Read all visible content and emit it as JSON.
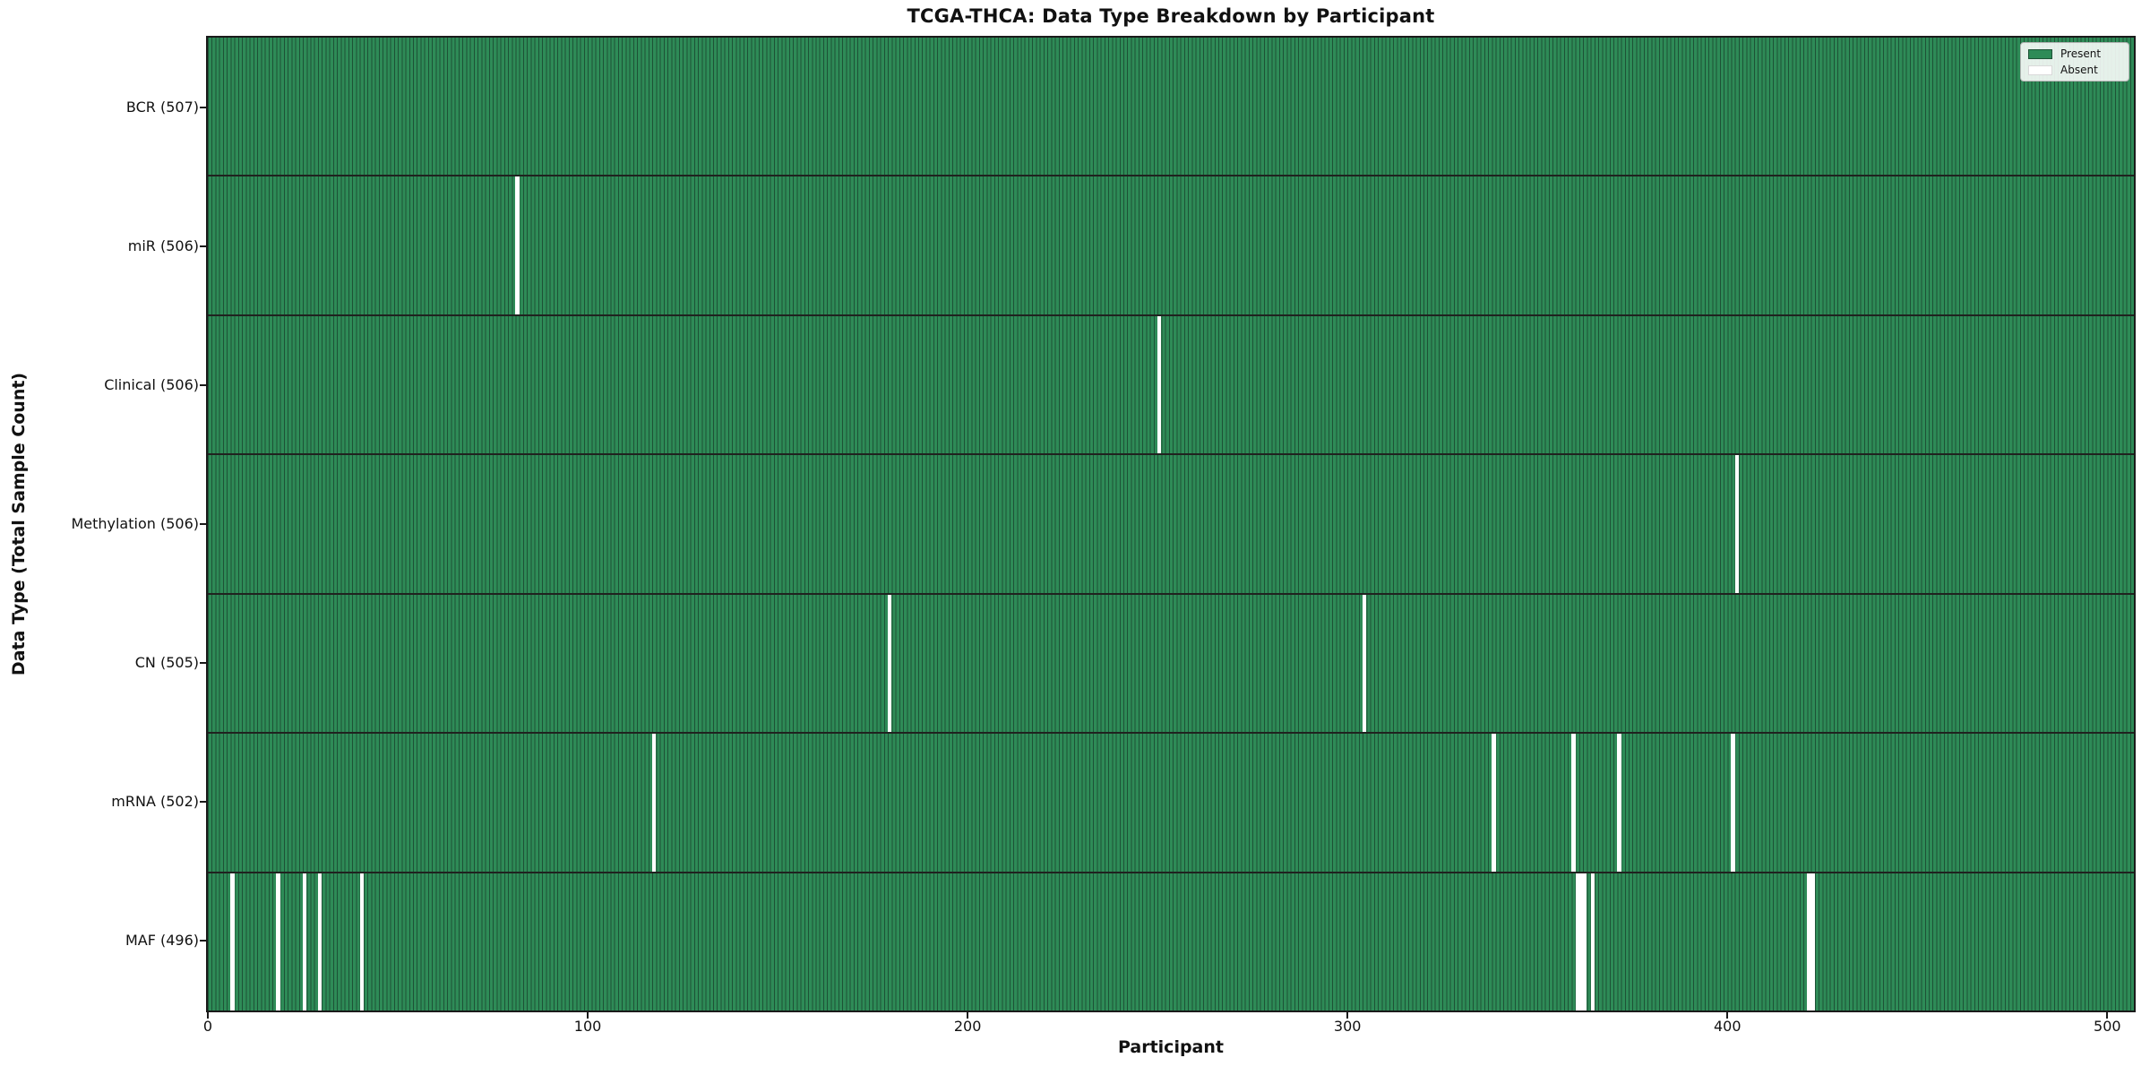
{
  "title": "TCGA-THCA: Data Type Breakdown by Participant",
  "xlabel": "Participant",
  "ylabel": "Data Type (Total Sample Count)",
  "legend": {
    "present_label": "Present",
    "absent_label": "Absent"
  },
  "colors": {
    "present": "#2e8b57",
    "bar_edge": "#1d5236",
    "absent": "#ffffff",
    "row_divider": "#20221f",
    "spine": "#1a1a1a"
  },
  "chart_data": {
    "type": "heatmap",
    "title": "TCGA-THCA: Data Type Breakdown by Participant",
    "xlabel": "Participant",
    "ylabel": "Data Type (Total Sample Count)",
    "legend_entries": [
      "Present",
      "Absent"
    ],
    "legend_position": "upper right",
    "x_ticks": [
      0,
      100,
      200,
      300,
      400,
      500
    ],
    "xlim": [
      0,
      507
    ],
    "total_participants": 507,
    "rows": [
      {
        "label": "BCR (507)",
        "data_type": "BCR",
        "present_count": 507,
        "absent_count": 0,
        "absent_participants": []
      },
      {
        "label": "miR (506)",
        "data_type": "miR",
        "present_count": 506,
        "absent_count": 1,
        "absent_participants": [
          81
        ]
      },
      {
        "label": "Clinical (506)",
        "data_type": "Clinical",
        "present_count": 506,
        "absent_count": 1,
        "absent_participants": [
          250
        ]
      },
      {
        "label": "Methylation (506)",
        "data_type": "Methylation",
        "present_count": 506,
        "absent_count": 1,
        "absent_participants": [
          402
        ]
      },
      {
        "label": "CN (505)",
        "data_type": "CN",
        "present_count": 505,
        "absent_count": 2,
        "absent_participants": [
          179,
          304
        ]
      },
      {
        "label": "mRNA (502)",
        "data_type": "mRNA",
        "present_count": 502,
        "absent_count": 5,
        "absent_participants": [
          117,
          338,
          359,
          371,
          401
        ]
      },
      {
        "label": "MAF (496)",
        "data_type": "MAF",
        "present_count": 496,
        "absent_count": 11,
        "absent_participants": [
          6,
          18,
          25,
          29,
          40,
          360,
          361,
          362,
          364,
          421,
          422
        ]
      }
    ]
  }
}
